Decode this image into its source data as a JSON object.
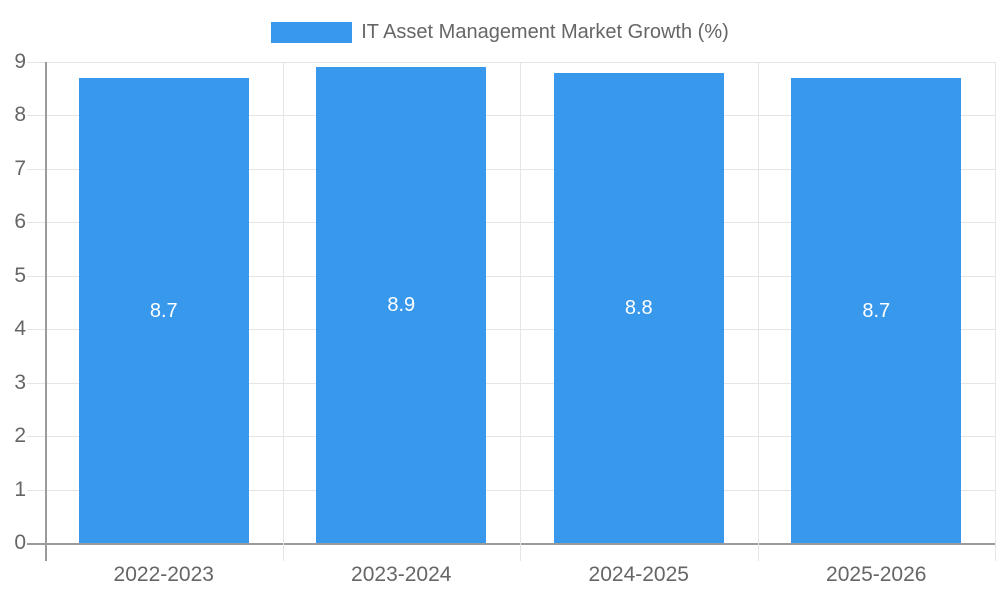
{
  "chart_data": {
    "type": "bar",
    "title": "IT Asset Management Market Growth (%)",
    "legend": {
      "label": "IT Asset Management Market Growth (%)",
      "position": "top"
    },
    "categories": [
      "2022-2023",
      "2023-2024",
      "2024-2025",
      "2025-2026"
    ],
    "series": [
      {
        "name": "IT Asset Management Market Growth (%)",
        "values": [
          8.7,
          8.9,
          8.8,
          8.7
        ]
      }
    ],
    "value_labels": [
      "8.7",
      "8.9",
      "8.8",
      "8.7"
    ],
    "xlabel": "",
    "ylabel": "",
    "ylim": [
      0,
      9
    ],
    "yticks": [
      0,
      1,
      2,
      3,
      4,
      5,
      6,
      7,
      8,
      9
    ],
    "grid": true,
    "colors": {
      "bar": "#3898EC",
      "bar_label": "#FFFFFF",
      "axis_text": "#666666",
      "grid_line": "#E5E5E5",
      "axis_line": "#9B9B9B",
      "background": "#FFFFFF"
    }
  }
}
